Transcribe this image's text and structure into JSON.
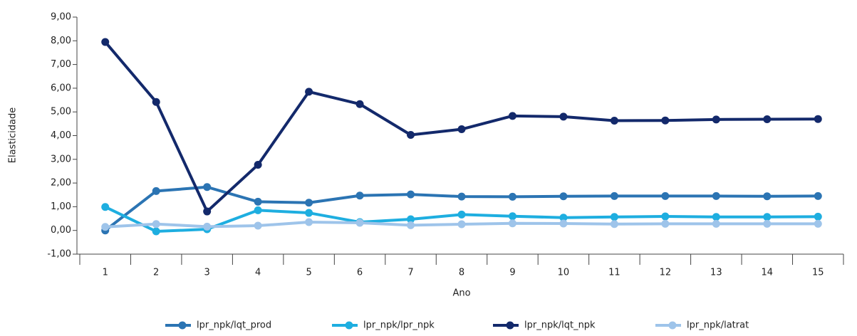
{
  "chart_data": {
    "type": "line",
    "x_label": "Ano",
    "y_label": "Elasticidade",
    "categories": [
      "1",
      "2",
      "3",
      "4",
      "5",
      "6",
      "7",
      "8",
      "9",
      "10",
      "11",
      "12",
      "13",
      "14",
      "15"
    ],
    "series": [
      {
        "name": "lpr_npk/lqt_prod",
        "color": "#2b74b3",
        "values": [
          0.0,
          1.66,
          1.83,
          1.21,
          1.17,
          1.47,
          1.52,
          1.43,
          1.42,
          1.44,
          1.45,
          1.45,
          1.45,
          1.44,
          1.45
        ]
      },
      {
        "name": "lpr_npk/lpr_npk",
        "color": "#1eaee0",
        "values": [
          0.99,
          -0.04,
          0.05,
          0.85,
          0.74,
          0.35,
          0.47,
          0.67,
          0.6,
          0.54,
          0.57,
          0.59,
          0.57,
          0.57,
          0.58
        ]
      },
      {
        "name": "lpr_npk/lqt_npk",
        "color": "#13296b",
        "values": [
          7.95,
          5.42,
          0.8,
          2.77,
          5.85,
          5.33,
          4.03,
          4.27,
          4.83,
          4.8,
          4.63,
          4.64,
          4.68,
          4.69,
          4.7
        ]
      },
      {
        "name": "lpr_npk/latrat",
        "color": "#9ec4ea",
        "values": [
          0.15,
          0.27,
          0.16,
          0.2,
          0.35,
          0.32,
          0.22,
          0.26,
          0.3,
          0.29,
          0.27,
          0.28,
          0.28,
          0.28,
          0.28
        ]
      }
    ],
    "ylim": [
      -1,
      9
    ],
    "yticks": [
      {
        "value": -1,
        "label": "-1,00"
      },
      {
        "value": 0,
        "label": "0,00"
      },
      {
        "value": 1,
        "label": "1,00"
      },
      {
        "value": 2,
        "label": "2,00"
      },
      {
        "value": 3,
        "label": "3,00"
      },
      {
        "value": 4,
        "label": "4,00"
      },
      {
        "value": 5,
        "label": "5,00"
      },
      {
        "value": 6,
        "label": "6,00"
      },
      {
        "value": 7,
        "label": "7,00"
      },
      {
        "value": 8,
        "label": "8,00"
      },
      {
        "value": 9,
        "label": "9,00"
      }
    ],
    "grid": false,
    "legend": "bottom"
  }
}
